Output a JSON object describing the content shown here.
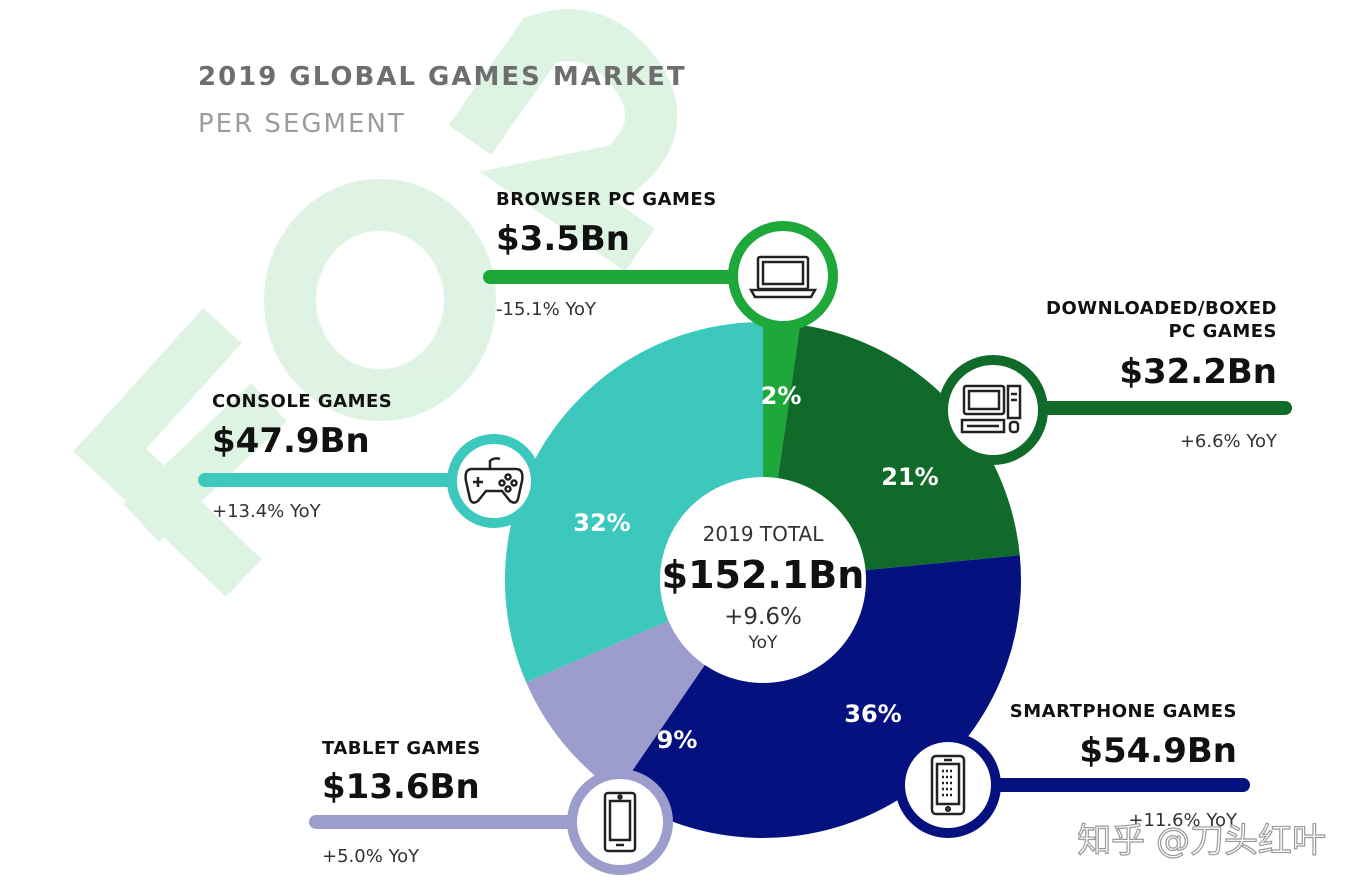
{
  "header": {
    "title": "2019 GLOBAL GAMES MARKET",
    "subtitle": "PER SEGMENT"
  },
  "watermark": {
    "text": "知乎 @刀头红叶"
  },
  "center": {
    "label": "2019 TOTAL",
    "value": "$152.1Bn",
    "growth": "+9.6%",
    "growth_unit": "YoY"
  },
  "chart_data": {
    "type": "pie",
    "title": "2019 GLOBAL GAMES MARKET",
    "subtitle": "PER SEGMENT",
    "total": 152.1,
    "start_angle_deg": 0,
    "segments": [
      {
        "key": "browser",
        "name": "BROWSER PC GAMES",
        "value": 3.5,
        "value_label": "$3.5Bn",
        "percent_label": "2%",
        "yoy": "-15.1% YoY",
        "color": "#1fa83a",
        "icon": "laptop-icon"
      },
      {
        "key": "downloaded",
        "name": "DOWNLOADED/BOXED PC GAMES",
        "name_lines": [
          "DOWNLOADED/BOXED",
          "PC GAMES"
        ],
        "value": 32.2,
        "value_label": "$32.2Bn",
        "percent_label": "21%",
        "yoy": "+6.6% YoY",
        "color": "#106b2a",
        "icon": "desktop-computer-icon"
      },
      {
        "key": "smartphone",
        "name": "SMARTPHONE GAMES",
        "value": 54.9,
        "value_label": "$54.9Bn",
        "percent_label": "36%",
        "yoy": "+11.6% YoY",
        "color": "#061180",
        "icon": "smartphone-icon"
      },
      {
        "key": "tablet",
        "name": "TABLET GAMES",
        "value": 13.6,
        "value_label": "$13.6Bn",
        "percent_label": "9%",
        "yoy": "+5.0% YoY",
        "color": "#9c9dcc",
        "icon": "tablet-icon"
      },
      {
        "key": "console",
        "name": "CONSOLE GAMES",
        "value": 47.9,
        "value_label": "$47.9Bn",
        "percent_label": "32%",
        "yoy": "+13.4% YoY",
        "color": "#3cc8bc",
        "icon": "gamepad-icon"
      }
    ]
  }
}
